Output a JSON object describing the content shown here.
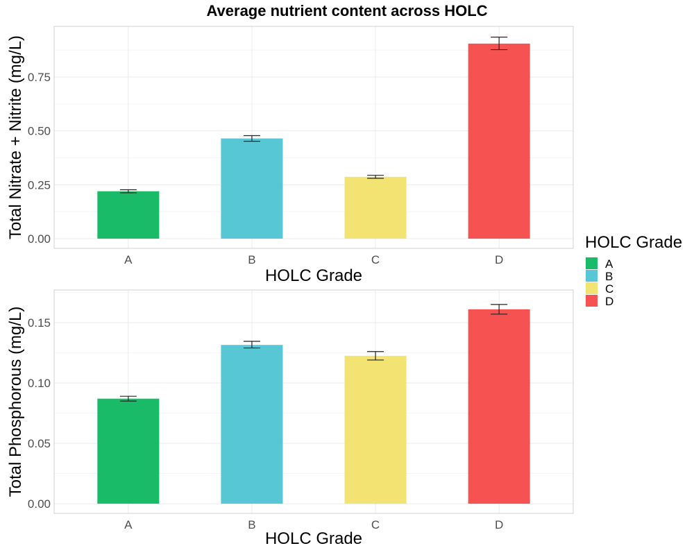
{
  "figure_title": "Average nutrient content across HOLC",
  "legend": {
    "title": "HOLC Grade",
    "items": [
      {
        "label": "A",
        "color": "#1abb68"
      },
      {
        "label": "B",
        "color": "#57c7d6"
      },
      {
        "label": "C",
        "color": "#f2e372"
      },
      {
        "label": "D",
        "color": "#f75252"
      }
    ]
  },
  "chart_data": [
    {
      "type": "bar",
      "title": "",
      "xlabel": "HOLC Grade",
      "ylabel": "Total Nitrate + Nitrite (mg/L)",
      "categories": [
        "A",
        "B",
        "C",
        "D"
      ],
      "values": [
        0.22,
        0.465,
        0.287,
        0.905
      ],
      "error_low": [
        0.213,
        0.452,
        0.28,
        0.877
      ],
      "error_high": [
        0.227,
        0.478,
        0.294,
        0.935
      ],
      "ylim": [
        -0.045,
        0.985
      ],
      "yticks": [
        0.0,
        0.25,
        0.5,
        0.75
      ],
      "ytick_labels": [
        "0.00",
        "0.25",
        "0.50",
        "0.75"
      ],
      "grid": true
    },
    {
      "type": "bar",
      "title": "",
      "xlabel": "HOLC Grade",
      "ylabel": "Total Phosphorous (mg/L)",
      "categories": [
        "A",
        "B",
        "C",
        "D"
      ],
      "values": [
        0.087,
        0.1315,
        0.1225,
        0.161
      ],
      "error_low": [
        0.085,
        0.129,
        0.119,
        0.157
      ],
      "error_high": [
        0.089,
        0.1345,
        0.126,
        0.165
      ],
      "ylim": [
        -0.008,
        0.177
      ],
      "yticks": [
        0.0,
        0.05,
        0.1,
        0.15
      ],
      "ytick_labels": [
        "0.00",
        "0.05",
        "0.10",
        "0.15"
      ],
      "grid": true
    }
  ]
}
